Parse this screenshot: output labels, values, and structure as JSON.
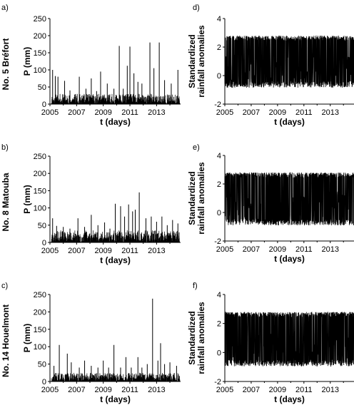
{
  "chart_data": [
    {
      "type": "bar",
      "panel_label": "a)",
      "station_label": "No. 5 Bréfort",
      "ylabel": "P (mm)",
      "xlabel": "t (days)",
      "xlim": [
        2005,
        2014.8
      ],
      "ylim": [
        0,
        250
      ],
      "xticks": [
        2005,
        2007,
        2009,
        2011,
        2013
      ],
      "yticks": [
        0,
        50,
        100,
        150,
        200,
        250
      ],
      "seed": 11,
      "baseline_max": 30,
      "peaks": [
        [
          2005.2,
          100
        ],
        [
          2005.4,
          82
        ],
        [
          2005.6,
          80
        ],
        [
          2006.1,
          68
        ],
        [
          2006.5,
          40
        ],
        [
          2007.2,
          80
        ],
        [
          2007.7,
          45
        ],
        [
          2008.1,
          75
        ],
        [
          2008.5,
          38
        ],
        [
          2008.8,
          95
        ],
        [
          2009.3,
          60
        ],
        [
          2009.8,
          45
        ],
        [
          2010.2,
          170
        ],
        [
          2010.5,
          45
        ],
        [
          2010.8,
          112
        ],
        [
          2011.0,
          168
        ],
        [
          2011.3,
          90
        ],
        [
          2011.6,
          65
        ],
        [
          2011.9,
          60
        ],
        [
          2012.5,
          180
        ],
        [
          2012.8,
          105
        ],
        [
          2013.2,
          180
        ],
        [
          2013.6,
          70
        ],
        [
          2014.1,
          60
        ],
        [
          2014.6,
          100
        ]
      ]
    },
    {
      "type": "bar",
      "panel_label": "b)",
      "station_label": "No. 8 Matouba",
      "ylabel": "P (mm)",
      "xlabel": "t (days)",
      "xlim": [
        2005,
        2014.8
      ],
      "ylim": [
        0,
        250
      ],
      "xticks": [
        2005,
        2007,
        2009,
        2011,
        2013
      ],
      "yticks": [
        0,
        50,
        100,
        150,
        200,
        250
      ],
      "seed": 23,
      "baseline_max": 35,
      "peaks": [
        [
          2005.2,
          70
        ],
        [
          2005.5,
          48
        ],
        [
          2006.0,
          45
        ],
        [
          2006.5,
          40
        ],
        [
          2007.1,
          70
        ],
        [
          2007.6,
          45
        ],
        [
          2008.1,
          80
        ],
        [
          2008.6,
          50
        ],
        [
          2009.1,
          58
        ],
        [
          2009.5,
          40
        ],
        [
          2009.9,
          112
        ],
        [
          2010.3,
          105
        ],
        [
          2010.6,
          75
        ],
        [
          2010.9,
          110
        ],
        [
          2011.2,
          90
        ],
        [
          2011.4,
          95
        ],
        [
          2011.7,
          145
        ],
        [
          2012.2,
          70
        ],
        [
          2012.6,
          75
        ],
        [
          2013.0,
          60
        ],
        [
          2013.4,
          75
        ],
        [
          2013.8,
          50
        ],
        [
          2014.2,
          65
        ],
        [
          2014.6,
          55
        ]
      ]
    },
    {
      "type": "bar",
      "panel_label": "c)",
      "station_label": "No. 14 Houelmont",
      "ylabel": "P (mm)",
      "xlabel": "t (days)",
      "xlim": [
        2005,
        2014.8
      ],
      "ylim": [
        0,
        250
      ],
      "xticks": [
        2005,
        2007,
        2009,
        2011,
        2013
      ],
      "yticks": [
        0,
        50,
        100,
        150,
        200,
        250
      ],
      "seed": 37,
      "baseline_max": 25,
      "peaks": [
        [
          2005.3,
          45
        ],
        [
          2005.7,
          105
        ],
        [
          2006.3,
          80
        ],
        [
          2006.6,
          55
        ],
        [
          2007.2,
          40
        ],
        [
          2007.6,
          60
        ],
        [
          2008.1,
          45
        ],
        [
          2008.6,
          40
        ],
        [
          2009.0,
          60
        ],
        [
          2009.4,
          40
        ],
        [
          2009.8,
          105
        ],
        [
          2010.3,
          40
        ],
        [
          2010.7,
          70
        ],
        [
          2011.1,
          40
        ],
        [
          2011.6,
          70
        ],
        [
          2011.9,
          40
        ],
        [
          2012.3,
          50
        ],
        [
          2012.7,
          238
        ],
        [
          2013.1,
          60
        ],
        [
          2013.3,
          110
        ],
        [
          2013.6,
          50
        ],
        [
          2014.0,
          55
        ],
        [
          2014.5,
          45
        ]
      ]
    },
    {
      "type": "line",
      "panel_label": "d)",
      "ylabel_line1": "Standardized",
      "ylabel_line2": "rainfall anomalies",
      "xlabel": "t (days)",
      "xlim": [
        2005,
        2014.8
      ],
      "ylim": [
        -2,
        4
      ],
      "xticks": [
        2005,
        2007,
        2009,
        2011,
        2013
      ],
      "yticks": [
        -2,
        0,
        2,
        4
      ],
      "seed": 51,
      "low": -0.85,
      "high": 2.8
    },
    {
      "type": "line",
      "panel_label": "e)",
      "ylabel_line1": "Standardized",
      "ylabel_line2": "rainfall anomalies",
      "xlabel": "t (days)",
      "xlim": [
        2005,
        2014.8
      ],
      "ylim": [
        -2,
        4
      ],
      "xticks": [
        2005,
        2007,
        2009,
        2011,
        2013
      ],
      "yticks": [
        -2,
        0,
        2,
        4
      ],
      "seed": 63,
      "low": -0.9,
      "high": 2.8
    },
    {
      "type": "line",
      "panel_label": "f)",
      "ylabel_line1": "Standardized",
      "ylabel_line2": "rainfall anomalies",
      "xlabel": "t (days)",
      "xlim": [
        2005,
        2014.8
      ],
      "ylim": [
        -2,
        4
      ],
      "xticks": [
        2005,
        2007,
        2009,
        2011,
        2013
      ],
      "yticks": [
        -2,
        0,
        2,
        4
      ],
      "seed": 79,
      "low": -0.95,
      "high": 2.8
    }
  ]
}
